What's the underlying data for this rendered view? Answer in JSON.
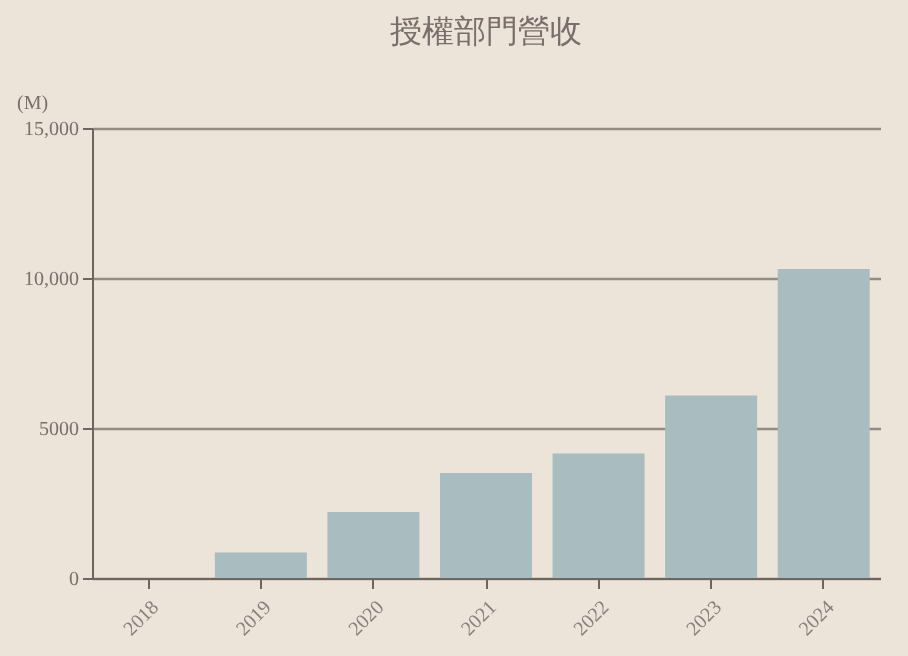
{
  "chart_data": {
    "type": "bar",
    "title": "授權部門營收",
    "ylabel": "(M)",
    "categories": [
      "2018",
      "2019",
      "2020",
      "2021",
      "2022",
      "2023",
      "2024"
    ],
    "values": [
      0,
      850,
      2200,
      3500,
      4150,
      6080,
      10300
    ],
    "color": "#a9bcbf",
    "ylim": [
      0,
      15000
    ],
    "yticks": [
      {
        "value": 0,
        "label": "0"
      },
      {
        "value": 5000,
        "label": "5000"
      },
      {
        "value": 10000,
        "label": "10,000"
      },
      {
        "value": 15000,
        "label": "15,000"
      }
    ],
    "grid": "y"
  }
}
